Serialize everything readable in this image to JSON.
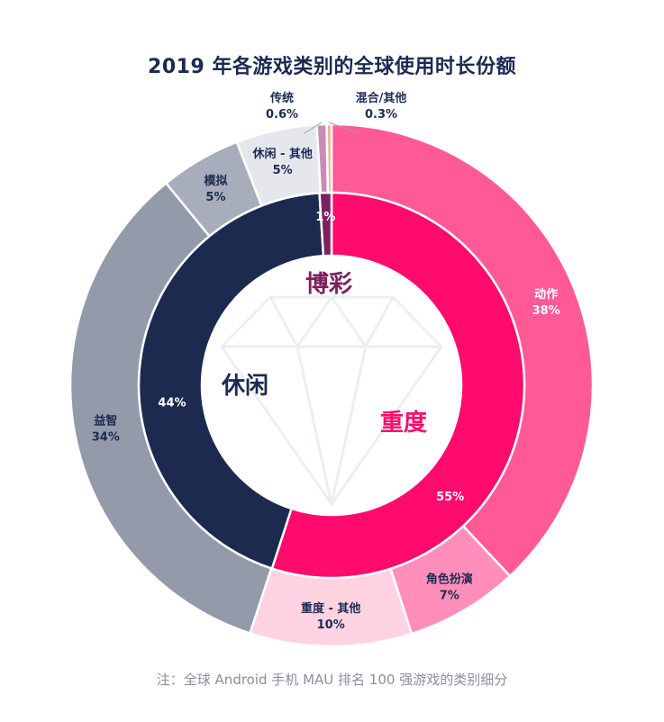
{
  "chart_data": {
    "type": "pie",
    "title": "2019 年各游戏类别的全球使用时长份额",
    "note": "注：全球 Android 手机 MAU 排名 100 强游戏的类别细分",
    "inner_ring": [
      {
        "name": "重度",
        "value": 55,
        "label": "55%",
        "color": "#ff0a6d"
      },
      {
        "name": "休闲",
        "value": 44,
        "label": "44%",
        "color": "#1c2a50"
      },
      {
        "name": "博彩",
        "value": 1,
        "label": "1%",
        "color": "#7b2160"
      }
    ],
    "outer_ring": [
      {
        "name": "动作",
        "value": 38,
        "label": "38%",
        "color": "#ff5a96"
      },
      {
        "name": "角色扮演",
        "value": 7,
        "label": "7%",
        "color": "#ff8fba"
      },
      {
        "name": "重度 - 其他",
        "value": 10,
        "label": "10%",
        "color": "#ffd3e2"
      },
      {
        "name": "益智",
        "value": 34,
        "label": "34%",
        "color": "#939aaa"
      },
      {
        "name": "模拟",
        "value": 5,
        "label": "5%",
        "color": "#a7adba"
      },
      {
        "name": "休闲 - 其他",
        "value": 5,
        "label": "5%",
        "color": "#e5e7ec"
      },
      {
        "name": "传统",
        "value": 0.6,
        "label": "0.6%",
        "color": "#c88cb4"
      },
      {
        "name": "混合/其他",
        "value": 0.3,
        "label": "0.3%",
        "color": "#f3b38a"
      }
    ]
  }
}
